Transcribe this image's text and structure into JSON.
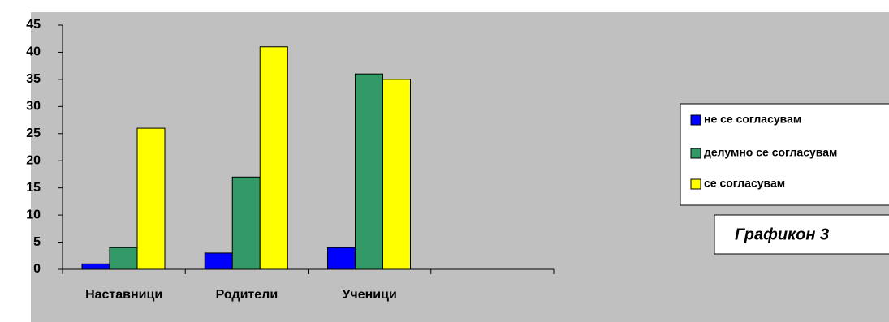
{
  "chart_data": {
    "type": "bar",
    "categories": [
      "Наставници",
      "Родители",
      "Ученици",
      null
    ],
    "series": [
      {
        "name": "не се согласувам",
        "color": "#0000ff",
        "values": [
          1,
          3,
          4,
          null
        ]
      },
      {
        "name": "делумно се согласувам",
        "color": "#339966",
        "values": [
          4,
          17,
          36,
          null
        ]
      },
      {
        "name": "се согласувам",
        "color": "#ffff00",
        "values": [
          26,
          41,
          35,
          null
        ]
      }
    ],
    "ylim": [
      0,
      45
    ],
    "yticks": [
      0,
      5,
      10,
      15,
      20,
      25,
      30,
      35,
      40,
      45
    ],
    "grid": false,
    "legend": "right",
    "annotation": "Графикон 3"
  }
}
